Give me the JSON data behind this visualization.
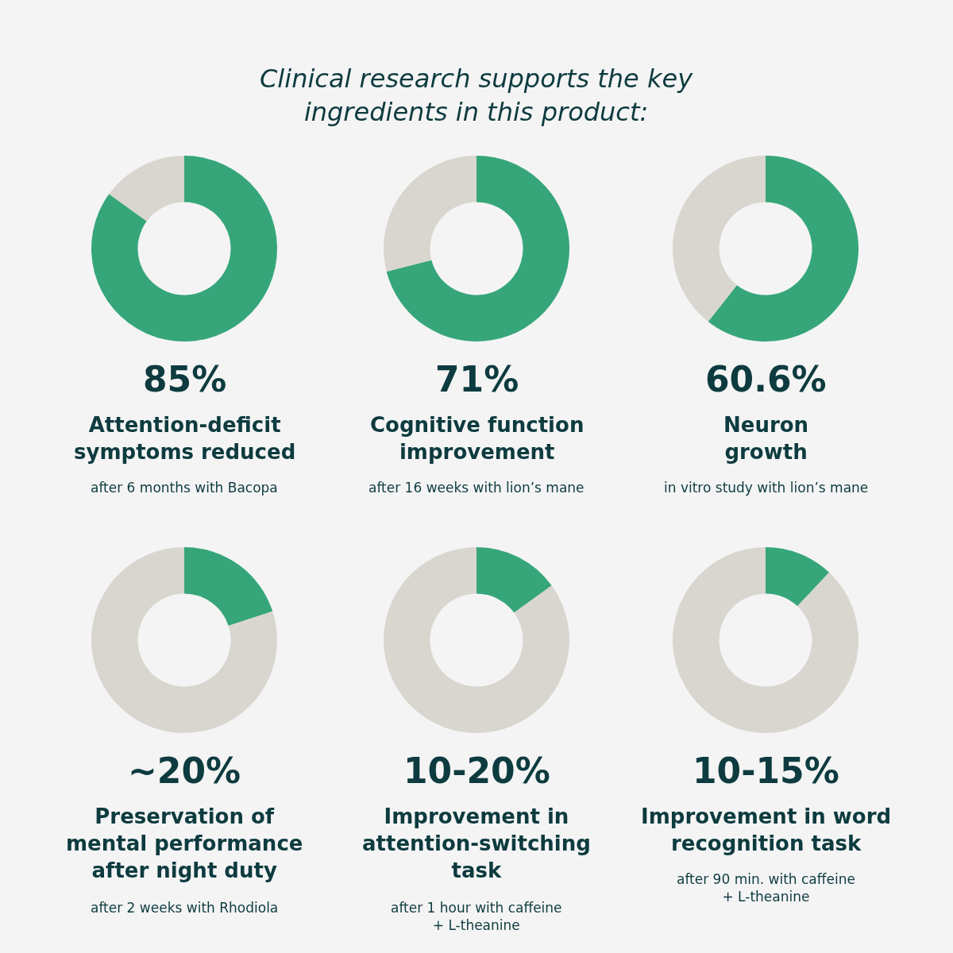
{
  "chart_data": [
    {
      "type": "other",
      "title": "Clinical research supports the key\ningredients in this product:"
    },
    {
      "type": "donut",
      "title": "85%\nAttention-deficit\nsymptoms reduced",
      "subtitle": "after 6 months with Bacopa",
      "categories": [
        null,
        null
      ],
      "values": [
        85,
        15
      ],
      "colors": [
        "#36a67a",
        "#d9d5cf"
      ]
    },
    {
      "type": "donut",
      "title": "71%\nCognitive function\nimprovement",
      "subtitle": "after 16 weeks with lion’s mane",
      "categories": [
        null,
        null
      ],
      "values": [
        71,
        29
      ],
      "colors": [
        "#36a67a",
        "#d9d5cf"
      ]
    },
    {
      "type": "donut",
      "title": "60.6%\nNeuron\ngrowth",
      "subtitle": "in vitro study with lion’s mane",
      "categories": [
        null,
        null
      ],
      "values": [
        60.6,
        39.4
      ],
      "colors": [
        "#36a67a",
        "#d9d5cf"
      ]
    },
    {
      "type": "donut",
      "title": "~20%\nPreservation of\nmental performance\nafter night duty",
      "subtitle": "after 2 weeks with Rhodiola",
      "categories": [
        null,
        null
      ],
      "values": [
        20,
        80
      ],
      "colors": [
        "#36a67a",
        "#d9d5cf"
      ]
    },
    {
      "type": "donut",
      "title": "10-20%\nImprovement in\nattention-switching\ntask",
      "subtitle": "after 1 hour with caffeine\n+ L-theanine",
      "categories": [
        null,
        null
      ],
      "values": [
        15,
        85
      ],
      "colors": [
        "#36a67a",
        "#d9d5cf"
      ]
    },
    {
      "type": "donut",
      "title": "10-15%\nImprovement in word\nrecognition task",
      "subtitle": "after 90 min. with caffeine\n+ L-theanine",
      "categories": [
        null,
        null
      ],
      "values": [
        12,
        88
      ],
      "colors": [
        "#36a67a",
        "#d9d5cf"
      ]
    }
  ]
}
